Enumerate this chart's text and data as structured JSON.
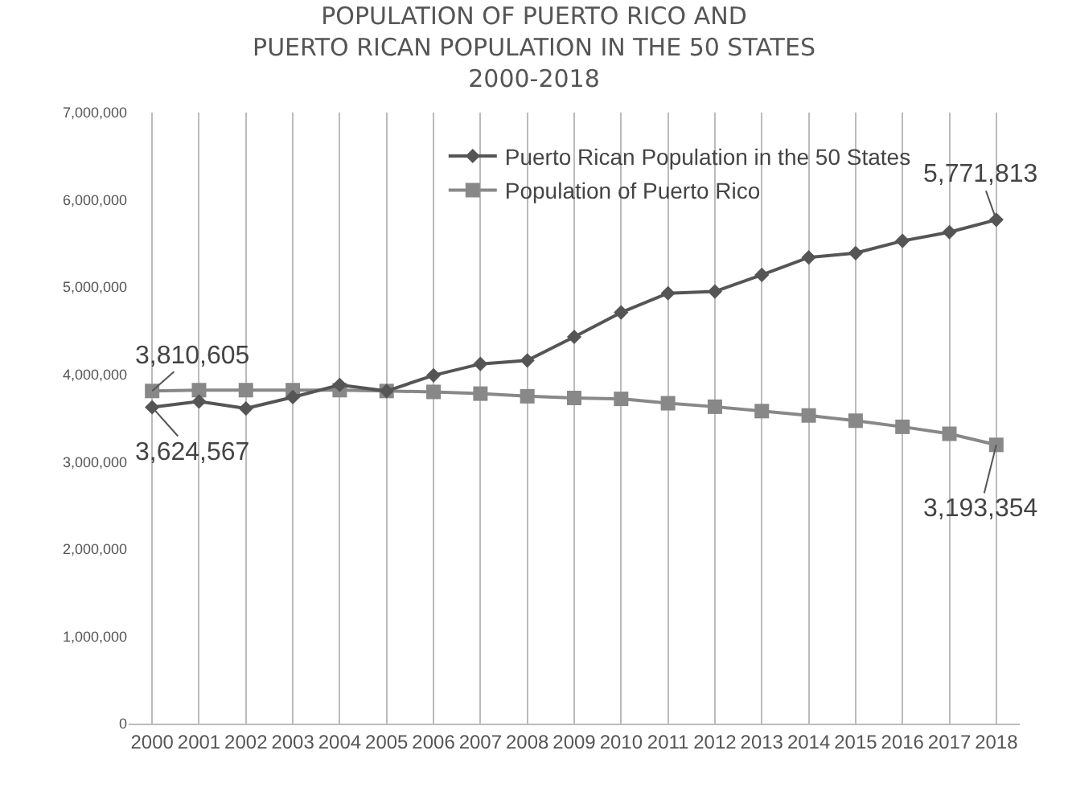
{
  "chart_data": {
    "type": "line",
    "title": "POPULATION OF PUERTO RICO AND\nPUERTO RICAN POPULATION IN THE 50 STATES\n2000-2018",
    "categories": [
      "2000",
      "2001",
      "2002",
      "2003",
      "2004",
      "2005",
      "2006",
      "2007",
      "2008",
      "2009",
      "2010",
      "2011",
      "2012",
      "2013",
      "2014",
      "2015",
      "2016",
      "2017",
      "2018"
    ],
    "series": [
      {
        "name": "Puerto Rican Population in the 50 States",
        "color": "#555555",
        "marker": "diamond",
        "values": [
          3624567,
          3690000,
          3610000,
          3740000,
          3880000,
          3810000,
          3990000,
          4120000,
          4160000,
          4430000,
          4710000,
          4930000,
          4950000,
          5140000,
          5340000,
          5390000,
          5530000,
          5630000,
          5771813
        ]
      },
      {
        "name": "Population of Puerto Rico",
        "color": "#888888",
        "marker": "square",
        "values": [
          3810605,
          3820000,
          3820000,
          3820000,
          3820000,
          3810000,
          3800000,
          3780000,
          3750000,
          3730000,
          3720000,
          3670000,
          3630000,
          3580000,
          3530000,
          3470000,
          3400000,
          3320000,
          3193354
        ]
      }
    ],
    "ylim": [
      0,
      7000000
    ],
    "yticks": [
      {
        "value": 0,
        "label": "0"
      },
      {
        "value": 1000000,
        "label": "1,000,000"
      },
      {
        "value": 2000000,
        "label": "2,000,000"
      },
      {
        "value": 3000000,
        "label": "3,000,000"
      },
      {
        "value": 4000000,
        "label": "4,000,000"
      },
      {
        "value": 5000000,
        "label": "5,000,000"
      },
      {
        "value": 6000000,
        "label": "6,000,000"
      },
      {
        "value": 7000000,
        "label": "7,000,000"
      }
    ],
    "grid": "x",
    "legend": "top",
    "line_style": "solid",
    "annotations": [
      {
        "text": "3,810,605",
        "x": "2000",
        "y": 3810605
      },
      {
        "text": "3,624,567",
        "x": "2000",
        "y": 3624567
      },
      {
        "text": "5,771,813",
        "x": "2018",
        "y": 5771813
      },
      {
        "text": "3,193,354",
        "x": "2018",
        "y": 3193354
      }
    ]
  }
}
